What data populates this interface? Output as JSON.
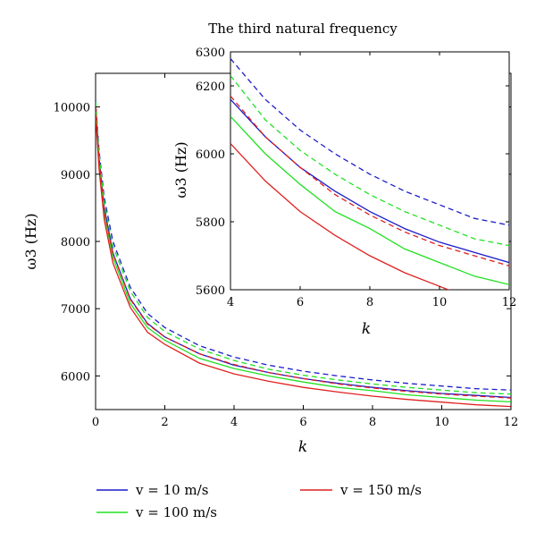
{
  "colors": {
    "v10": "#1c1cc8",
    "v100": "#22e022",
    "v150": "#e02020"
  },
  "legend": [
    {
      "label": "v = 10 m/s",
      "color": "#1c1cc8"
    },
    {
      "label": "v = 150 m/s",
      "color": "#e02020"
    },
    {
      "label": "v = 100 m/s",
      "color": "#22e022"
    }
  ],
  "chart_data": [
    {
      "type": "line",
      "title": "",
      "xlabel": "k",
      "ylabel": "ω3 (Hz)",
      "xlim": [
        0,
        12
      ],
      "ylim": [
        5500,
        10500
      ],
      "xticks": [
        0,
        2,
        4,
        6,
        8,
        10,
        12
      ],
      "yticks": [
        6000,
        7000,
        8000,
        9000,
        10000
      ],
      "legend_position": "bottom",
      "series": [
        {
          "name": "v = 10 m/s",
          "style": "solid",
          "color": "#1c1cc8",
          "x": [
            0,
            0.1,
            0.25,
            0.5,
            1,
            1.5,
            2,
            3,
            4,
            5,
            6,
            7,
            8,
            9,
            10,
            11,
            12
          ],
          "y": [
            10050,
            9250,
            8500,
            7830,
            7150,
            6780,
            6580,
            6330,
            6160,
            6050,
            5960,
            5890,
            5830,
            5780,
            5740,
            5710,
            5680
          ]
        },
        {
          "name": "v = 10 m/s",
          "style": "dashed",
          "color": "#1c1cc8",
          "x": [
            0,
            0.1,
            0.25,
            0.5,
            1,
            1.5,
            2,
            3,
            4,
            5,
            6,
            7,
            8,
            9,
            10,
            11,
            12
          ],
          "y": [
            10100,
            9350,
            8650,
            8000,
            7320,
            6930,
            6720,
            6450,
            6280,
            6160,
            6070,
            6000,
            5940,
            5890,
            5850,
            5810,
            5790
          ]
        },
        {
          "name": "v = 100 m/s",
          "style": "solid",
          "color": "#22e022",
          "x": [
            0,
            0.1,
            0.25,
            0.5,
            1,
            1.5,
            2,
            3,
            4,
            5,
            6,
            7,
            8,
            9,
            10,
            11,
            12
          ],
          "y": [
            10000,
            9180,
            8420,
            7760,
            7080,
            6720,
            6530,
            6260,
            6110,
            6000,
            5910,
            5830,
            5780,
            5720,
            5680,
            5640,
            5615
          ]
        },
        {
          "name": "v = 100 m/s",
          "style": "dashed",
          "color": "#22e022",
          "x": [
            0,
            0.1,
            0.25,
            0.5,
            1,
            1.5,
            2,
            3,
            4,
            5,
            6,
            7,
            8,
            9,
            10,
            11,
            12
          ],
          "y": [
            10080,
            9300,
            8580,
            7930,
            7260,
            6870,
            6660,
            6400,
            6230,
            6100,
            6010,
            5940,
            5880,
            5830,
            5790,
            5750,
            5730
          ]
        },
        {
          "name": "v = 150 m/s",
          "style": "solid",
          "color": "#e02020",
          "x": [
            0,
            0.1,
            0.25,
            0.5,
            1,
            1.5,
            2,
            3,
            4,
            5,
            6,
            7,
            8,
            9,
            10,
            11,
            12
          ],
          "y": [
            9900,
            9080,
            8320,
            7680,
            7020,
            6650,
            6470,
            6190,
            6030,
            5920,
            5830,
            5760,
            5700,
            5650,
            5610,
            5570,
            5545
          ]
        },
        {
          "name": "v = 150 m/s",
          "style": "dashed",
          "color": "#e02020",
          "x": [
            0,
            0.1,
            0.25,
            0.5,
            1,
            1.5,
            2,
            3,
            4,
            5,
            6,
            7,
            8,
            9,
            10,
            11,
            12
          ],
          "y": [
            10000,
            9200,
            8460,
            7820,
            7140,
            6770,
            6580,
            6330,
            6170,
            6050,
            5960,
            5880,
            5820,
            5770,
            5730,
            5700,
            5670
          ]
        }
      ]
    },
    {
      "type": "line",
      "title": "The third natural frequency",
      "xlabel": "k",
      "ylabel": "ω3 (Hz)",
      "xlim": [
        4,
        12
      ],
      "ylim": [
        5600,
        6300
      ],
      "xticks": [
        4,
        6,
        8,
        10,
        12
      ],
      "yticks": [
        5600,
        5800,
        6000,
        6200,
        6300
      ],
      "series": [
        {
          "name": "v = 10 m/s",
          "style": "solid",
          "color": "#1c1cc8",
          "x": [
            4,
            5,
            6,
            7,
            8,
            9,
            10,
            11,
            12
          ],
          "y": [
            6160,
            6050,
            5960,
            5890,
            5830,
            5780,
            5740,
            5710,
            5680
          ]
        },
        {
          "name": "v = 10 m/s",
          "style": "dashed",
          "color": "#1c1cc8",
          "x": [
            4,
            5,
            6,
            7,
            8,
            9,
            10,
            11,
            12
          ],
          "y": [
            6280,
            6160,
            6070,
            6000,
            5940,
            5890,
            5850,
            5810,
            5790
          ]
        },
        {
          "name": "v = 100 m/s",
          "style": "solid",
          "color": "#22e022",
          "x": [
            4,
            5,
            6,
            7,
            8,
            9,
            10,
            11,
            12
          ],
          "y": [
            6110,
            6000,
            5910,
            5830,
            5780,
            5720,
            5680,
            5640,
            5615
          ]
        },
        {
          "name": "v = 100 m/s",
          "style": "dashed",
          "color": "#22e022",
          "x": [
            4,
            5,
            6,
            7,
            8,
            9,
            10,
            11,
            12
          ],
          "y": [
            6230,
            6100,
            6010,
            5940,
            5880,
            5830,
            5790,
            5750,
            5730
          ]
        },
        {
          "name": "v = 150 m/s",
          "style": "solid",
          "color": "#e02020",
          "x": [
            4,
            5,
            6,
            7,
            8,
            9,
            10,
            11,
            12
          ],
          "y": [
            6030,
            5920,
            5830,
            5760,
            5700,
            5650,
            5610,
            5570,
            5545
          ]
        },
        {
          "name": "v = 150 m/s",
          "style": "dashed",
          "color": "#e02020",
          "x": [
            4,
            5,
            6,
            7,
            8,
            9,
            10,
            11,
            12
          ],
          "y": [
            6170,
            6050,
            5960,
            5880,
            5820,
            5770,
            5730,
            5700,
            5670
          ]
        }
      ]
    }
  ]
}
